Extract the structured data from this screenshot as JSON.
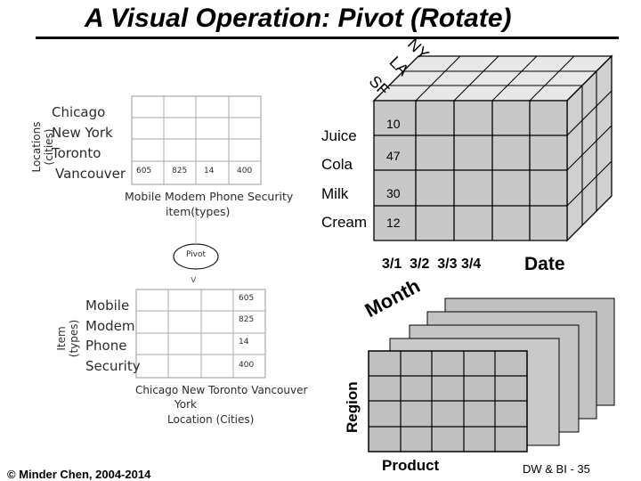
{
  "title": "A Visual Operation:  Pivot (Rotate)",
  "top_table": {
    "y_axis_label": "Locations\n(cities)",
    "rows": [
      "Chicago",
      "New York",
      "Toronto",
      "Vancouver"
    ],
    "columns": [
      "Mobile",
      "Modem",
      "Phone",
      "Security"
    ],
    "x_axis_label": "item(types)",
    "bottom_values": [
      "605",
      "825",
      "14",
      "400"
    ]
  },
  "pivot_label": "Pivot",
  "pivot_arrow": "v",
  "bottom_table": {
    "y_axis_label": "Item\n(types)",
    "rows": [
      "Mobile",
      "Modem",
      "Phone",
      "Security"
    ],
    "columns": [
      "Chicago",
      "New",
      "Toronto",
      "Vancouver"
    ],
    "column_extra": "York",
    "x_axis_label": "Location (Cities)",
    "right_values": [
      "605",
      "825",
      "14",
      "400"
    ]
  },
  "cube": {
    "depth_labels": [
      "NY",
      "LA",
      "SF"
    ],
    "rows": [
      "Juice",
      "Cola",
      "Milk",
      "Cream"
    ],
    "values": [
      "10",
      "47",
      "30",
      "12"
    ],
    "dates": "3/1  3/2  3/3 3/4",
    "date_axis_label": "Date"
  },
  "stack": {
    "month_label": "Month",
    "region_label": "Region",
    "product_label": "Product"
  },
  "footer": {
    "copyright": "© Minder Chen, 2004-2014",
    "slide_number": "DW & BI - 35"
  },
  "colors": {
    "cell_fill": "#c8c8c8",
    "grid": "#999999"
  }
}
